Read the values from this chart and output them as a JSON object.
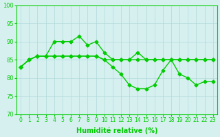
{
  "title": "",
  "xlabel": "Humidité relative (%)",
  "ylabel": "",
  "xlim": [
    -0.5,
    23.5
  ],
  "ylim": [
    70,
    100
  ],
  "yticks": [
    70,
    75,
    80,
    85,
    90,
    95,
    100
  ],
  "xticks": [
    0,
    1,
    2,
    3,
    4,
    5,
    6,
    7,
    8,
    9,
    10,
    11,
    12,
    13,
    14,
    15,
    16,
    17,
    18,
    19,
    20,
    21,
    22,
    23
  ],
  "bg_color": "#d6f0f0",
  "grid_color": "#b0d8d8",
  "line_color": "#00cc00",
  "lines": [
    {
      "x": [
        0,
        1,
        2,
        3,
        4,
        5,
        6,
        7,
        8,
        9,
        10,
        11,
        12,
        13,
        14,
        15,
        16,
        17,
        18,
        19,
        20,
        21,
        22,
        23
      ],
      "y": [
        83,
        85,
        86,
        86,
        90,
        90,
        90,
        91.5,
        89,
        90,
        87,
        85,
        85,
        85,
        87,
        85,
        85,
        85,
        85,
        85,
        85,
        85,
        85,
        85
      ]
    },
    {
      "x": [
        0,
        1,
        2,
        3,
        4,
        5,
        6,
        7,
        8,
        9,
        10,
        11,
        12,
        13,
        14,
        15,
        16,
        17,
        18,
        19,
        20,
        21,
        22,
        23
      ],
      "y": [
        83,
        85,
        86,
        86,
        86,
        86,
        86,
        86,
        86,
        86,
        85,
        85,
        85,
        85,
        85,
        85,
        85,
        85,
        85,
        85,
        85,
        85,
        85,
        85
      ]
    },
    {
      "x": [
        0,
        1,
        2,
        3,
        4,
        5,
        6,
        7,
        8,
        9,
        10,
        11,
        12,
        13,
        14,
        15,
        16,
        17,
        18,
        19,
        20,
        21,
        22,
        23
      ],
      "y": [
        83,
        85,
        86,
        86,
        86,
        86,
        86,
        86,
        86,
        86,
        85,
        83,
        81,
        78,
        77,
        77,
        78,
        82,
        85,
        81,
        80,
        78,
        79,
        79
      ]
    }
  ],
  "marker": "D",
  "markersize": 2.5,
  "linewidth": 1.0
}
